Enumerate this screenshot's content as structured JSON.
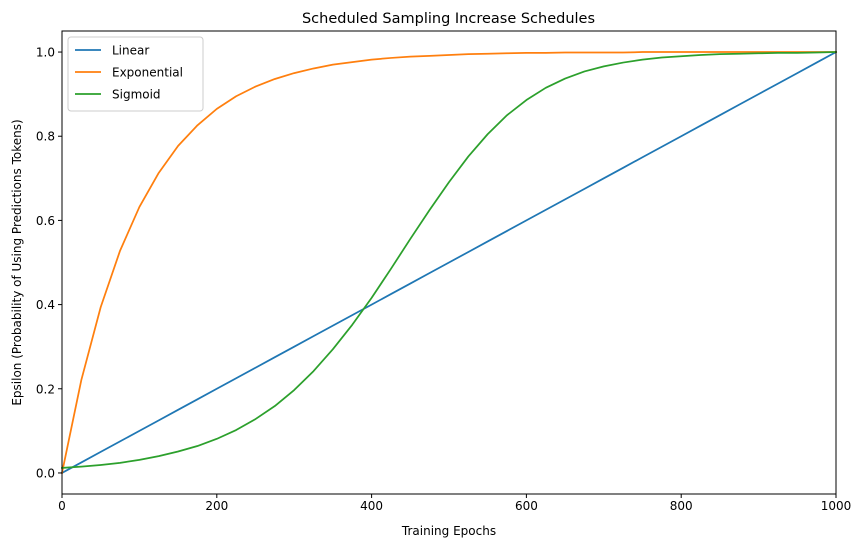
{
  "chart_data": {
    "type": "line",
    "title": "Scheduled Sampling Increase Schedules",
    "xlabel": "Training Epochs",
    "ylabel": "Epsilon (Probability of Using Predictions Tokens)",
    "xlim": [
      0,
      1000
    ],
    "ylim": [
      -0.05,
      1.05
    ],
    "xticks": [
      0,
      200,
      400,
      600,
      800,
      1000
    ],
    "xtick_labels": [
      "0",
      "200",
      "400",
      "600",
      "800",
      "1000"
    ],
    "yticks": [
      0.0,
      0.2,
      0.4,
      0.6,
      0.8,
      1.0
    ],
    "ytick_labels": [
      "0.0",
      "0.2",
      "0.4",
      "0.6",
      "0.8",
      "1.0"
    ],
    "grid": false,
    "legend_position": "top-left",
    "x": [
      0,
      25,
      50,
      75,
      100,
      125,
      150,
      175,
      200,
      225,
      250,
      275,
      300,
      325,
      350,
      375,
      400,
      425,
      450,
      475,
      500,
      525,
      550,
      575,
      600,
      625,
      650,
      675,
      700,
      725,
      750,
      775,
      800,
      825,
      850,
      875,
      900,
      925,
      950,
      975,
      1000
    ],
    "series": [
      {
        "name": "Linear",
        "color": "#1f77b4",
        "values": [
          0.0,
          0.025,
          0.05,
          0.075,
          0.1,
          0.125,
          0.15,
          0.175,
          0.2,
          0.225,
          0.25,
          0.275,
          0.3,
          0.325,
          0.35,
          0.375,
          0.4,
          0.425,
          0.45,
          0.475,
          0.5,
          0.525,
          0.55,
          0.575,
          0.6,
          0.625,
          0.65,
          0.675,
          0.7,
          0.725,
          0.75,
          0.775,
          0.8,
          0.825,
          0.85,
          0.875,
          0.9,
          0.925,
          0.95,
          0.975,
          1.0
        ]
      },
      {
        "name": "Exponential",
        "color": "#ff7f0e",
        "values": [
          0.0,
          0.221,
          0.394,
          0.528,
          0.632,
          0.713,
          0.777,
          0.826,
          0.865,
          0.895,
          0.918,
          0.936,
          0.95,
          0.961,
          0.97,
          0.976,
          0.982,
          0.986,
          0.989,
          0.991,
          0.993,
          0.995,
          0.996,
          0.997,
          0.998,
          0.998,
          0.999,
          0.999,
          0.999,
          0.999,
          1.0,
          1.0,
          1.0,
          1.0,
          1.0,
          1.0,
          1.0,
          1.0,
          1.0,
          1.0,
          1.0
        ]
      },
      {
        "name": "Sigmoid",
        "color": "#2ca02c",
        "values": [
          0.012,
          0.015,
          0.019,
          0.024,
          0.031,
          0.04,
          0.051,
          0.064,
          0.081,
          0.102,
          0.128,
          0.159,
          0.197,
          0.242,
          0.294,
          0.352,
          0.416,
          0.485,
          0.556,
          0.625,
          0.691,
          0.752,
          0.805,
          0.85,
          0.886,
          0.915,
          0.937,
          0.954,
          0.966,
          0.975,
          0.982,
          0.987,
          0.99,
          0.993,
          0.995,
          0.996,
          0.997,
          0.998,
          0.998,
          0.999,
          1.0
        ]
      }
    ]
  }
}
